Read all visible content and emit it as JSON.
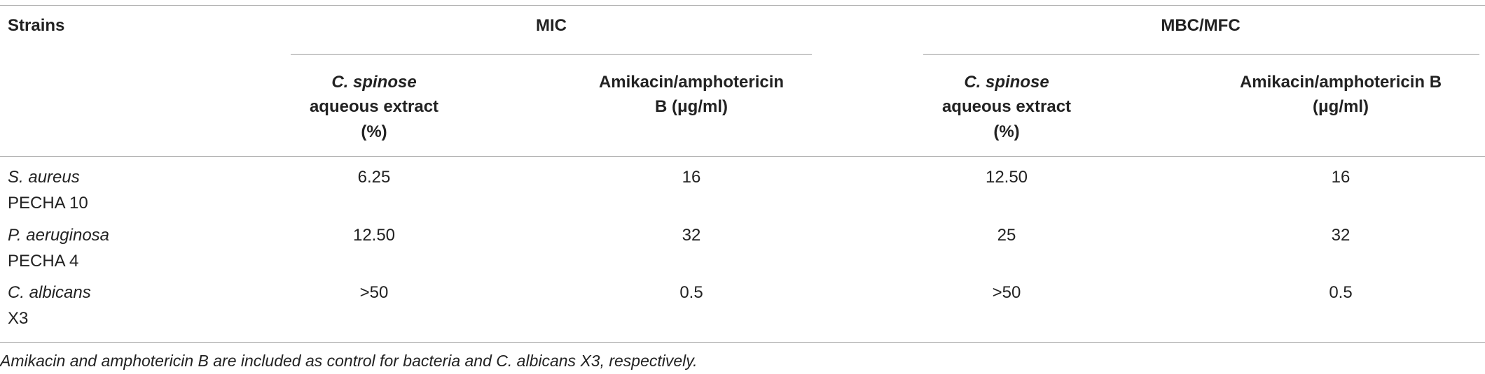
{
  "table": {
    "header": {
      "strains": "Strains",
      "groups": [
        "MIC",
        "MBC/MFC"
      ],
      "columns": [
        {
          "species": "C. spinose",
          "rest": [
            "aqueous extract",
            "(%)"
          ]
        },
        {
          "lines": [
            "Amikacin/amphotericin",
            "B (μg/ml)"
          ]
        },
        {
          "species": "C. spinose",
          "rest": [
            "aqueous extract",
            "(%)"
          ]
        },
        {
          "lines": [
            "Amikacin/amphotericin B",
            "(μg/ml)"
          ]
        }
      ]
    },
    "rows": [
      {
        "species": "S. aureus",
        "strain": "PECHA 10",
        "cells": [
          "6.25",
          "16",
          "12.50",
          "16"
        ]
      },
      {
        "species": "P. aeruginosa",
        "strain": "PECHA 4",
        "cells": [
          "12.50",
          "32",
          "25",
          "32"
        ]
      },
      {
        "species": "C. albicans",
        "strain": "X3",
        "cells": [
          ">50",
          "0.5",
          ">50",
          "0.5"
        ]
      }
    ],
    "footnote": "Amikacin and amphotericin B are included as control for bacteria and C. albicans X3, respectively."
  }
}
